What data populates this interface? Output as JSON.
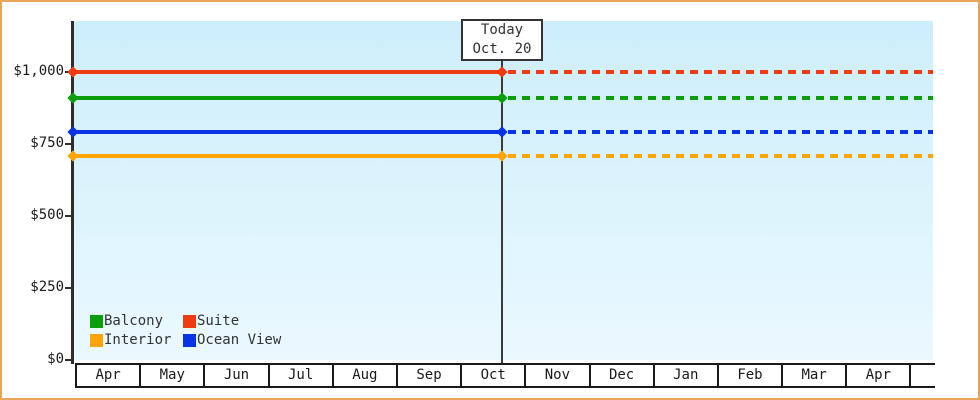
{
  "colors": {
    "frame_border": "#eaa459",
    "plot_bg_top": "#cdeefb",
    "plot_bg_bottom": "#eaf9fe",
    "axis": "#2d2d2d",
    "today_line": "#3a3a3a",
    "box_border": "#333333",
    "text": "#1a1a1a"
  },
  "chart_data": {
    "type": "line",
    "title": "",
    "x_axis": {
      "categories": [
        "Apr",
        "May",
        "Jun",
        "Jul",
        "Aug",
        "Sep",
        "Oct",
        "Nov",
        "Dec",
        "Jan",
        "Feb",
        "Mar",
        "Apr"
      ],
      "trailing_empty_cell": true
    },
    "y_axis": {
      "range": [
        0,
        1000
      ],
      "tick_values": [
        0,
        250,
        500,
        750,
        1000
      ],
      "tick_labels": [
        "$0",
        "$250",
        "$500",
        "$750",
        "$1,000"
      ],
      "grid": false
    },
    "series": [
      {
        "name": "Suite",
        "color": "#ee3b11",
        "value": 1000
      },
      {
        "name": "Balcony",
        "color": "#0a9e0b",
        "value": 910
      },
      {
        "name": "Ocean View",
        "color": "#0a32e6",
        "value": 790
      },
      {
        "name": "Interior",
        "color": "#ffa407",
        "value": 710
      }
    ],
    "line_style": {
      "before_today": "solid",
      "after_today": "dashed",
      "marker": "diamond"
    },
    "annotation": {
      "title": "Today",
      "date": "Oct. 20",
      "month": "Oct",
      "day": 20
    }
  },
  "legend": {
    "items": [
      {
        "label": "Balcony",
        "color": "#0a9e0b"
      },
      {
        "label": "Suite",
        "color": "#ee3b11"
      },
      {
        "label": "Interior",
        "color": "#ffa407"
      },
      {
        "label": "Ocean View",
        "color": "#0a32e6"
      }
    ],
    "position": "bottom-left"
  }
}
